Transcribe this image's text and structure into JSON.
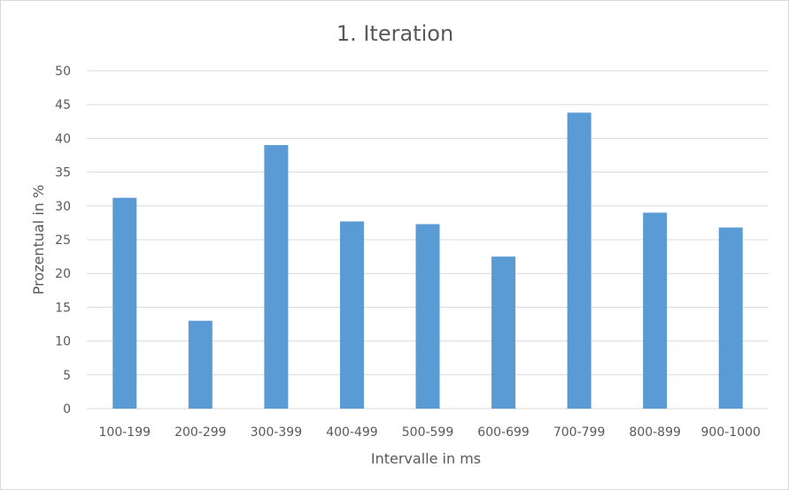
{
  "chart_data": {
    "type": "bar",
    "title": "1. Iteration",
    "xlabel": "Intervalle in ms",
    "ylabel": "Prozentual in %",
    "categories": [
      "100-199",
      "200-299",
      "300-399",
      "400-499",
      "500-599",
      "600-699",
      "700-799",
      "800-899",
      "900-1000"
    ],
    "values": [
      31.2,
      13.0,
      39.0,
      27.7,
      27.3,
      22.5,
      43.8,
      29.0,
      26.8
    ],
    "ylim": [
      0,
      50
    ],
    "yticks": [
      "0",
      "5",
      "10",
      "15",
      "20",
      "25",
      "30",
      "35",
      "40",
      "45",
      "50"
    ],
    "grid": true,
    "legend": "none",
    "bar_color": "#5b9bd5"
  }
}
